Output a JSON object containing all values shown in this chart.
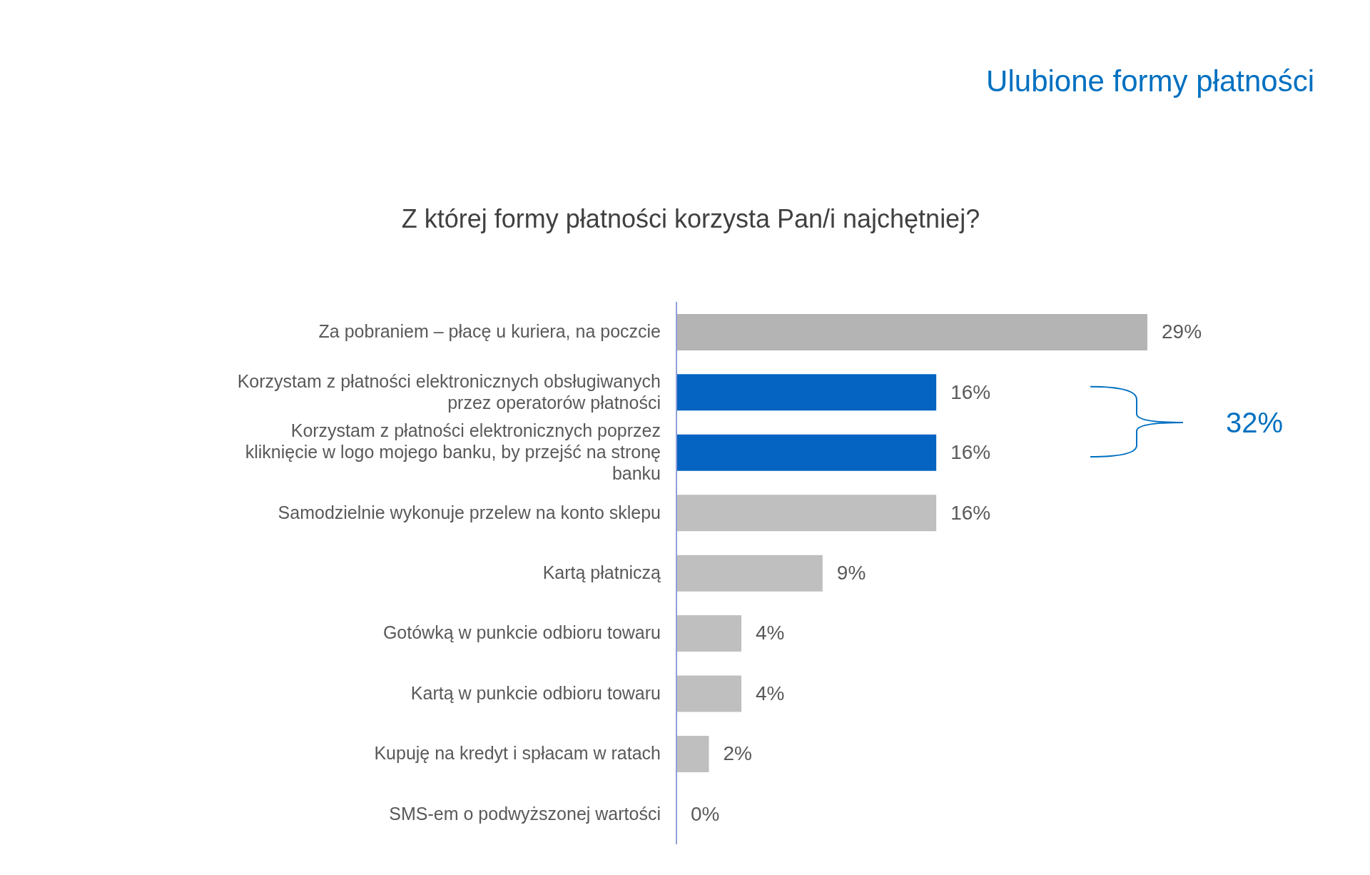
{
  "chart_data": {
    "type": "bar",
    "orientation": "horizontal",
    "title": "Ulubione formy płatności",
    "subtitle": "Z której formy płatności korzysta Pan/i najchętniej?",
    "categories": [
      "Za pobraniem – płacę u kuriera, na poczcie",
      "Korzystam z płatności elektronicznych obsługiwanych przez operatorów płatności",
      "Korzystam z płatności elektronicznych poprzez kliknięcie w logo mojego banku, by przejść na stronę banku",
      "Samodzielnie wykonuje przelew na konto sklepu",
      "Kartą płatniczą",
      "Gotówką w punkcie odbioru towaru",
      "Kartą w punkcie odbioru towaru",
      "Kupuję na kredyt i spłacam w ratach",
      "SMS-em  o podwyższonej wartości"
    ],
    "values": [
      29,
      16,
      16,
      16,
      9,
      4,
      4,
      2,
      0
    ],
    "value_labels": [
      "29%",
      "16%",
      "16%",
      "16%",
      "9%",
      "4%",
      "4%",
      "2%",
      "0%"
    ],
    "colors": [
      "#b4b4b4",
      "#0563c1",
      "#0563c1",
      "#bfbfbf",
      "#bfbfbf",
      "#bfbfbf",
      "#bfbfbf",
      "#bfbfbf",
      "#bfbfbf"
    ],
    "annotations": [
      "32%"
    ]
  }
}
